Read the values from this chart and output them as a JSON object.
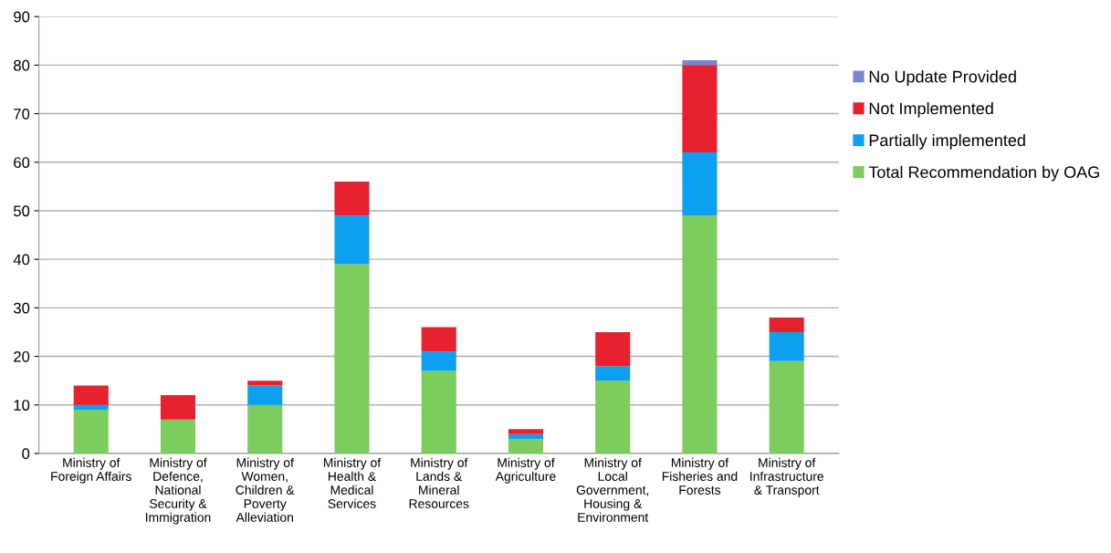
{
  "chart_data": {
    "type": "bar",
    "stacked": true,
    "categories": [
      "Ministry of\nForeign Affairs",
      "Ministry of\nDefence,\nNational\nSecurity &\nImmigration",
      "Ministry of\nWomen,\nChildren &\nPoverty\nAlleviation",
      "Ministry of\nHealth &\nMedical\nServices",
      "Ministry of\nLands &\nMineral\nResources",
      "Ministry of\nAgriculture",
      "Ministry of\nLocal\nGovernment,\nHousing &\nEnvironment",
      "Ministry of\nFisheries and\nForests",
      "Ministry of\nInfrastructure\n& Transport"
    ],
    "series": [
      {
        "name": "Total Recommendation by OAG",
        "color": "#7dcc5e",
        "values": [
          9,
          7,
          10,
          39,
          17,
          3,
          15,
          49,
          19
        ]
      },
      {
        "name": "Partially implemented",
        "color": "#0ea0f0",
        "values": [
          1,
          0,
          4,
          10,
          4,
          1,
          3,
          13,
          6
        ]
      },
      {
        "name": "Not Implemented",
        "color": "#e8212e",
        "values": [
          4,
          5,
          1,
          7,
          5,
          1,
          7,
          18,
          3
        ]
      },
      {
        "name": "No Update Provided",
        "color": "#7b86d0",
        "values": [
          0,
          0,
          0,
          0,
          0,
          0,
          0,
          1,
          0
        ]
      }
    ],
    "ylim": [
      0,
      90
    ],
    "yticks": [
      0,
      10,
      20,
      30,
      40,
      50,
      60,
      70,
      80,
      90
    ],
    "grid": "y",
    "legend": "right"
  }
}
